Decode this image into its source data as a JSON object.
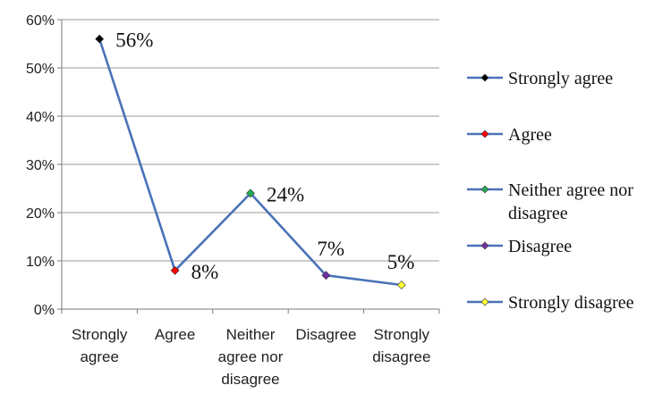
{
  "chart_data": {
    "type": "line",
    "categories": [
      [
        "Strongly",
        "agree"
      ],
      [
        "Agree"
      ],
      [
        "Neither",
        "agree nor",
        "disagree"
      ],
      [
        "Disagree"
      ],
      [
        "Strongly",
        "disagree"
      ]
    ],
    "values": [
      56,
      8,
      24,
      7,
      5
    ],
    "data_labels": [
      "56%",
      "8%",
      "24%",
      "7%",
      "5%"
    ],
    "ylim": [
      0,
      60
    ],
    "yticks": [
      "0%",
      "10%",
      "20%",
      "30%",
      "40%",
      "50%",
      "60%"
    ],
    "grid": true,
    "line_color": "#4a72b8",
    "marker_colors": [
      "#000000",
      "#ff0000",
      "#22aa55",
      "#7030a0",
      "#ffff33"
    ],
    "legend_position": "right",
    "legend": [
      {
        "label": [
          "Strongly agree"
        ],
        "color": "#000000"
      },
      {
        "label": [
          "Agree"
        ],
        "color": "#ff0000"
      },
      {
        "label": [
          "Neither agree nor",
          "disagree"
        ],
        "color": "#22aa55"
      },
      {
        "label": [
          "Disagree"
        ],
        "color": "#7030a0"
      },
      {
        "label": [
          "Strongly disagree"
        ],
        "color": "#ffff33"
      }
    ]
  }
}
